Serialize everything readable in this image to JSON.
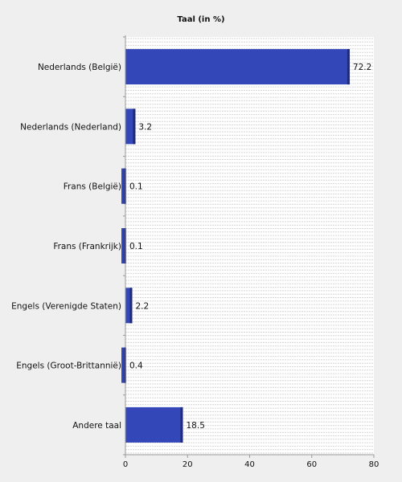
{
  "chart_data": {
    "type": "bar",
    "orientation": "horizontal",
    "title": "Taal (in %)",
    "xlabel": "",
    "ylabel": "",
    "categories": [
      "Nederlands (België)",
      "Nederlands (Nederland)",
      "Frans (België)",
      "Frans (Frankrijk)",
      "Engels (Verenigde Staten)",
      "Engels (Groot-Brittannië)",
      "Andere taal"
    ],
    "values": [
      72.2,
      3.2,
      0.1,
      0.1,
      2.2,
      0.4,
      18.5
    ],
    "value_labels": [
      "72.2",
      "3.2",
      "0.1",
      "0.1",
      "2.2",
      "0.4",
      "18.5"
    ],
    "xlim": [
      0,
      80
    ],
    "xticks": [
      0,
      20,
      40,
      60,
      80
    ],
    "grid": "horizontal dashed lines",
    "colors": {
      "background": "#efefef",
      "plot_area": "#ffffff",
      "grid": "#d6d6d6",
      "bar_fill": "#3347b8",
      "bar_edge": "#1f2a7a",
      "axis": "#999999"
    }
  }
}
